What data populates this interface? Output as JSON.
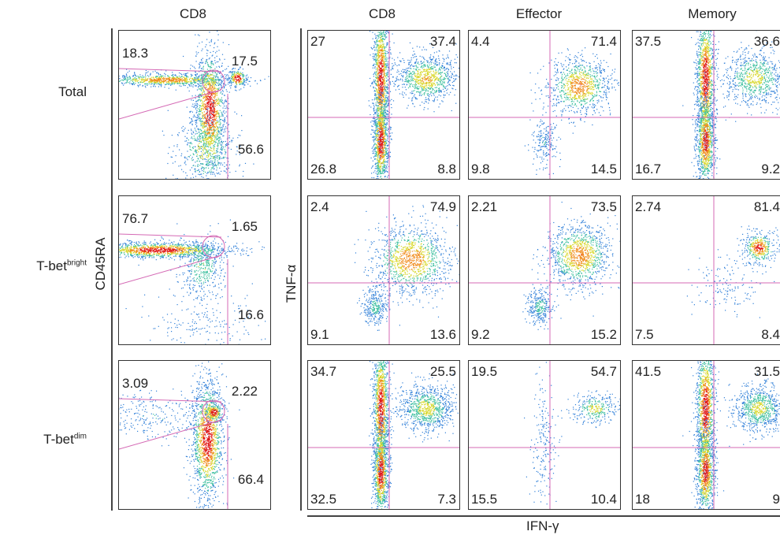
{
  "headers": {
    "left_cd8": "CD8",
    "cd8": "CD8",
    "effector": "Effector",
    "memory": "Memory"
  },
  "rows": [
    {
      "label": "Total",
      "sup": ""
    },
    {
      "label": "T-bet",
      "sup": "bright"
    },
    {
      "label": "T-bet",
      "sup": "dim"
    }
  ],
  "axes": {
    "cd45ra": "CD45RA",
    "tnf": "TNF-α",
    "ifn": "IFN-γ"
  },
  "chart_data": [
    {
      "type": "scatter",
      "description": "CD45RA vs CD8 gating (left column)",
      "ylabel": "CD45RA",
      "xlabel": "",
      "panels": [
        {
          "row": "Total",
          "gates": {
            "top_left": "18.3",
            "top_right": "17.5",
            "bottom_right": "56.6"
          }
        },
        {
          "row": "T-bet bright",
          "gates": {
            "top_left": "76.7",
            "top_right": "1.65",
            "bottom_right": "16.6"
          }
        },
        {
          "row": "T-bet dim",
          "gates": {
            "top_left": "3.09",
            "top_right": "2.22",
            "bottom_right": "66.4"
          }
        }
      ]
    },
    {
      "type": "scatter",
      "ylabel": "TNF-α",
      "xlabel": "IFN-γ",
      "columns": [
        "CD8",
        "Effector",
        "Memory"
      ],
      "panels": [
        {
          "row": "Total",
          "column": "CD8",
          "quadrants": {
            "tl": "27",
            "tr": "37.4",
            "bl": "26.8",
            "br": "8.8"
          }
        },
        {
          "row": "Total",
          "column": "Effector",
          "quadrants": {
            "tl": "4.4",
            "tr": "71.4",
            "bl": "9.8",
            "br": "14.5"
          }
        },
        {
          "row": "Total",
          "column": "Memory",
          "quadrants": {
            "tl": "37.5",
            "tr": "36.6",
            "bl": "16.7",
            "br": "9.2"
          }
        },
        {
          "row": "T-bet bright",
          "column": "CD8",
          "quadrants": {
            "tl": "2.4",
            "tr": "74.9",
            "bl": "9.1",
            "br": "13.6"
          }
        },
        {
          "row": "T-bet bright",
          "column": "Effector",
          "quadrants": {
            "tl": "2.21",
            "tr": "73.5",
            "bl": "9.2",
            "br": "15.2"
          }
        },
        {
          "row": "T-bet bright",
          "column": "Memory",
          "quadrants": {
            "tl": "2.74",
            "tr": "81.4",
            "bl": "7.5",
            "br": "8.4"
          }
        },
        {
          "row": "T-bet dim",
          "column": "CD8",
          "quadrants": {
            "tl": "34.7",
            "tr": "25.5",
            "bl": "32.5",
            "br": "7.3"
          }
        },
        {
          "row": "T-bet dim",
          "column": "Effector",
          "quadrants": {
            "tl": "19.5",
            "tr": "54.7",
            "bl": "15.5",
            "br": "10.4"
          }
        },
        {
          "row": "T-bet dim",
          "column": "Memory",
          "quadrants": {
            "tl": "41.5",
            "tr": "31.5",
            "bl": "18",
            "br": "9"
          }
        }
      ]
    }
  ]
}
